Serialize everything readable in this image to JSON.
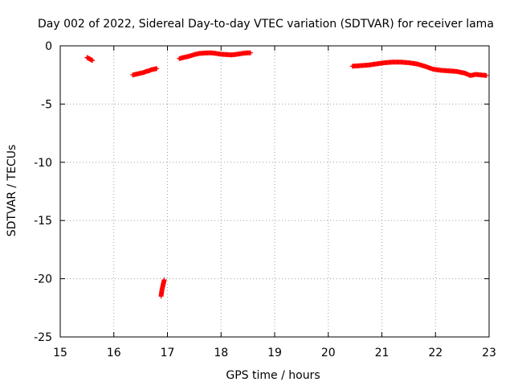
{
  "chart_data": {
    "type": "scatter",
    "title": "Day 002 of 2022, Sidereal Day-to-day VTEC variation (SDTVAR) for receiver lama",
    "xlabel": "GPS time / hours",
    "ylabel": "SDTVAR / TECUs",
    "xlim": [
      15,
      23
    ],
    "ylim": [
      -25,
      0
    ],
    "xticks": [
      15,
      16,
      17,
      18,
      19,
      20,
      21,
      22,
      23
    ],
    "yticks": [
      0,
      -5,
      -10,
      -15,
      -20,
      -25
    ],
    "grid": true,
    "marker": "+",
    "color": "#ff0000",
    "series": [
      {
        "name": "SDTVAR",
        "segments": [
          [
            [
              15.5,
              -1.0
            ],
            [
              15.52,
              -1.05
            ],
            [
              15.54,
              -1.1
            ],
            [
              15.56,
              -1.15
            ],
            [
              15.58,
              -1.2
            ],
            [
              15.6,
              -1.25
            ]
          ],
          [
            [
              16.35,
              -2.5
            ],
            [
              16.4,
              -2.45
            ],
            [
              16.45,
              -2.4
            ],
            [
              16.5,
              -2.35
            ],
            [
              16.55,
              -2.3
            ],
            [
              16.6,
              -2.2
            ],
            [
              16.65,
              -2.15
            ],
            [
              16.7,
              -2.05
            ],
            [
              16.75,
              -2.0
            ],
            [
              16.8,
              -1.95
            ]
          ],
          [
            [
              16.88,
              -21.5
            ],
            [
              16.89,
              -21.2
            ],
            [
              16.9,
              -20.9
            ],
            [
              16.91,
              -20.7
            ],
            [
              16.92,
              -20.5
            ],
            [
              16.93,
              -20.3
            ],
            [
              16.94,
              -20.1
            ]
          ],
          [
            [
              17.22,
              -1.1
            ],
            [
              17.3,
              -1.0
            ],
            [
              17.4,
              -0.9
            ],
            [
              17.5,
              -0.75
            ],
            [
              17.6,
              -0.65
            ],
            [
              17.7,
              -0.62
            ],
            [
              17.8,
              -0.6
            ],
            [
              17.9,
              -0.65
            ],
            [
              18.0,
              -0.72
            ],
            [
              18.1,
              -0.75
            ],
            [
              18.2,
              -0.78
            ],
            [
              18.3,
              -0.72
            ],
            [
              18.4,
              -0.65
            ],
            [
              18.5,
              -0.6
            ],
            [
              18.55,
              -0.6
            ]
          ],
          [
            [
              20.45,
              -1.75
            ],
            [
              20.6,
              -1.7
            ],
            [
              20.75,
              -1.65
            ],
            [
              20.9,
              -1.55
            ],
            [
              21.05,
              -1.45
            ],
            [
              21.2,
              -1.4
            ],
            [
              21.35,
              -1.4
            ],
            [
              21.5,
              -1.45
            ],
            [
              21.65,
              -1.55
            ],
            [
              21.8,
              -1.75
            ],
            [
              21.95,
              -2.0
            ],
            [
              22.1,
              -2.1
            ],
            [
              22.25,
              -2.15
            ],
            [
              22.4,
              -2.2
            ],
            [
              22.55,
              -2.35
            ],
            [
              22.65,
              -2.55
            ],
            [
              22.75,
              -2.45
            ],
            [
              22.85,
              -2.5
            ],
            [
              22.95,
              -2.55
            ]
          ]
        ]
      }
    ]
  }
}
